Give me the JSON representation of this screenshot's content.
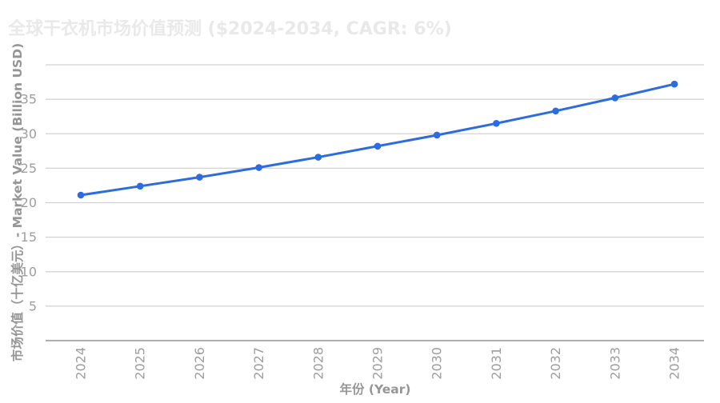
{
  "header": {
    "title": "全球干衣机市场价值预测 ($2024-2034, CAGR: 6%)"
  },
  "chart_data": {
    "type": "line",
    "title": "全球干衣机市场价值预测 ($2024-2034, CAGR: 6%)",
    "xlabel": "年份 (Year)",
    "ylabel": "市场价值（十亿美元）- Market Value (Billion USD)",
    "categories": [
      "2024",
      "2025",
      "2026",
      "2027",
      "2028",
      "2029",
      "2030",
      "2031",
      "2032",
      "2033",
      "2034"
    ],
    "series": [
      {
        "name": "Market Value (Billion USD)",
        "values": [
          21.1,
          22.4,
          23.7,
          25.1,
          26.6,
          28.2,
          29.8,
          31.5,
          33.3,
          35.2,
          37.2
        ]
      }
    ],
    "ylim": [
      0,
      40
    ],
    "ytick_step": 5,
    "yticks_labeled": [
      5,
      10,
      15,
      20,
      25,
      30,
      35
    ],
    "grid": "horizontal-only",
    "legend": "none",
    "x_tick_rotation_deg": -90
  },
  "colors": {
    "line": "#2b6ce2",
    "marker": "#2b6ce2",
    "gridline": "#d2d2d2",
    "axis_line": "#aeaeae",
    "tick_text": "#9e9e9e",
    "axis_title_text": "#969696",
    "title_text": "#e9e9e9",
    "background": "#ffffff"
  }
}
